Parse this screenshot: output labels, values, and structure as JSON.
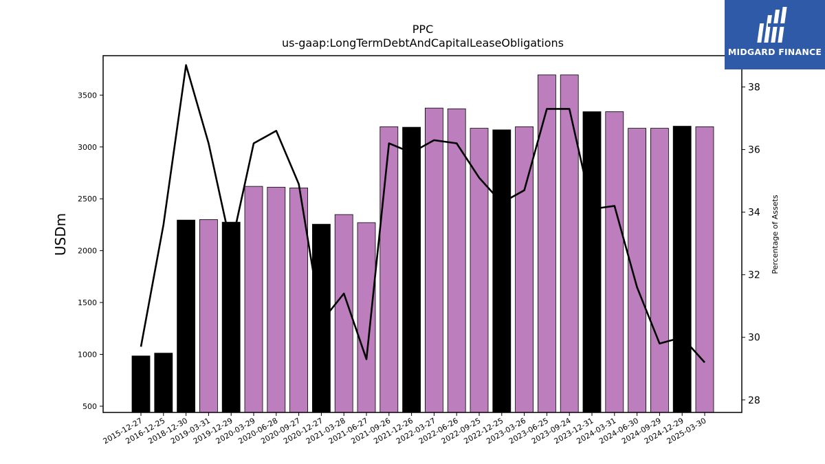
{
  "chart_data": {
    "type": "bar",
    "title": "PPC",
    "subtitle": "us-gaap:LongTermDebtAndCapitalLeaseObligations",
    "ylabel": "USDm",
    "y2label": "Percentage of Assets",
    "ylim": [
      440,
      3880
    ],
    "y2lim": [
      27.6,
      39.0
    ],
    "yticks": [
      "500",
      "1000",
      "1500",
      "2000",
      "2500",
      "3000",
      "3500"
    ],
    "y2ticks": [
      "28",
      "30",
      "32",
      "34",
      "36",
      "38"
    ],
    "categories": [
      "2015-12-27",
      "2016-12-25",
      "2018-12-30",
      "2019-03-31",
      "2019-12-29",
      "2020-03-29",
      "2020-06-28",
      "2020-09-27",
      "2020-12-27",
      "2021-03-28",
      "2021-06-27",
      "2021-09-26",
      "2021-12-26",
      "2022-03-27",
      "2022-06-26",
      "2022-09-25",
      "2022-12-25",
      "2023-03-26",
      "2023-06-25",
      "2023-09-24",
      "2023-12-31",
      "2024-03-31",
      "2024-06-30",
      "2024-09-29",
      "2024-12-29",
      "2025-03-30"
    ],
    "series": [
      {
        "values": [
          985,
          1012,
          2295,
          2300,
          2275,
          2620,
          2612,
          2605,
          2255,
          2348,
          2270,
          3195,
          3190,
          3375,
          3368,
          3180,
          3165,
          3195,
          3695,
          3695,
          3340,
          3340,
          3180,
          3180,
          3200,
          3195
        ],
        "bar_colors": [
          "#000000",
          "#000000",
          "#000000",
          "#bd7ebe",
          "#000000",
          "#bd7ebe",
          "#bd7ebe",
          "#bd7ebe",
          "#000000",
          "#bd7ebe",
          "#bd7ebe",
          "#bd7ebe",
          "#000000",
          "#bd7ebe",
          "#bd7ebe",
          "#bd7ebe",
          "#000000",
          "#bd7ebe",
          "#bd7ebe",
          "#bd7ebe",
          "#000000",
          "#bd7ebe",
          "#bd7ebe",
          "#bd7ebe",
          "#000000",
          "#bd7ebe"
        ]
      },
      {
        "axis": "right",
        "type": "line",
        "color": "#000000",
        "values": [
          29.7,
          33.6,
          38.7,
          36.2,
          32.9,
          36.2,
          36.6,
          34.9,
          30.5,
          31.4,
          29.3,
          36.2,
          35.9,
          36.3,
          36.2,
          35.1,
          34.3,
          34.7,
          37.3,
          37.3,
          34.1,
          34.2,
          31.6,
          29.8,
          30.0,
          29.2
        ]
      }
    ],
    "grid": false,
    "legend": "none"
  },
  "logo": {
    "text": "MIDGARD FINANCE",
    "background": "#2f5aa8"
  }
}
